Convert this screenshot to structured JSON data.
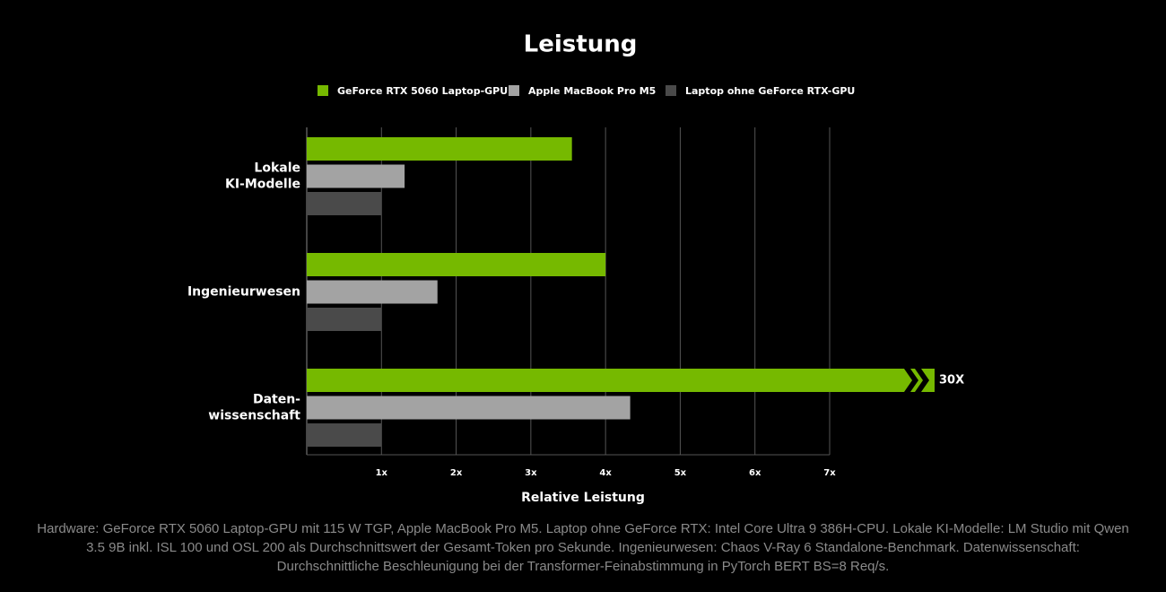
{
  "chart_data": {
    "type": "hbar",
    "title": "Leistung",
    "categories": [
      "Lokale\nKI-Modelle",
      "Ingenieurwesen",
      "Daten-\nwissenschaft"
    ],
    "series": [
      {
        "name": "GeForce RTX 5060 Laptop-GPU",
        "color": "#76b900",
        "values": [
          3.55,
          4.0,
          30
        ],
        "value_labels": [
          null,
          null,
          "30X"
        ]
      },
      {
        "name": "Apple MacBook Pro M5",
        "color": "#a3a3a3",
        "values": [
          1.31,
          1.75,
          4.33
        ]
      },
      {
        "name": "Laptop ohne GeForce RTX-GPU",
        "color": "#4a4a4a",
        "values": [
          1.0,
          1.0,
          1.0
        ]
      }
    ],
    "xlim": [
      0,
      7
    ],
    "xticks": [
      {
        "value": 1,
        "label": "1x"
      },
      {
        "value": 2,
        "label": "2x"
      },
      {
        "value": 3,
        "label": "3x"
      },
      {
        "value": 4,
        "label": "4x"
      },
      {
        "value": 5,
        "label": "5x"
      },
      {
        "value": 6,
        "label": "6x"
      },
      {
        "value": 7,
        "label": "7x"
      }
    ],
    "xlabel": "Relative Leistung",
    "grid": true,
    "legend": "top",
    "footnote": "Hardware: GeForce RTX 5060 Laptop-GPU mit 115 W TGP, Apple MacBook Pro M5. Laptop ohne GeForce RTX: Intel Core Ultra 9 386H-CPU. Lokale KI-Modelle: LM Studio mit Qwen 3.5 9B inkl. ISL 100 und OSL 200 als Durchschnittswert der Gesamt-Token pro Sekunde. Ingenieurwesen: Chaos V-Ray 6 Standalone-Benchmark. Datenwissenschaft: Durchschnittliche Beschleunigung bei der Transformer-Feinabstimmung in PyTorch BERT BS=8 Req/s."
  }
}
